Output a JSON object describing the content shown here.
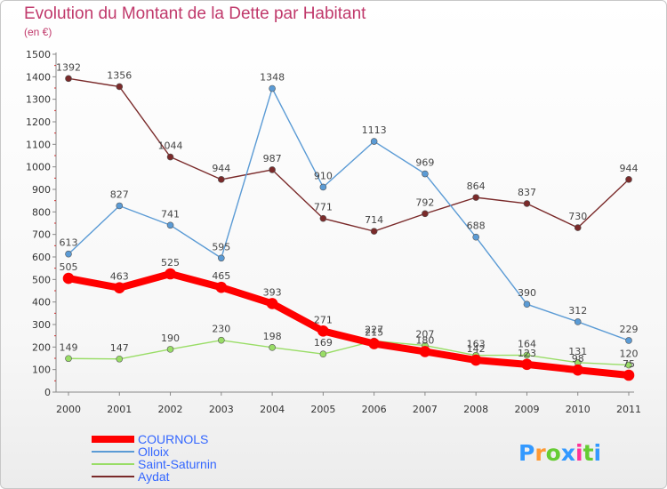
{
  "chart_data": {
    "type": "line",
    "title": "Evolution du Montant de la Dette par Habitant",
    "subtitle": "(en €)",
    "x": [
      "2000",
      "2001",
      "2002",
      "2003",
      "2004",
      "2005",
      "2006",
      "2007",
      "2008",
      "2009",
      "2010",
      "2011"
    ],
    "ylim": [
      0,
      1500
    ],
    "yticks": [
      0,
      100,
      200,
      300,
      400,
      500,
      600,
      700,
      800,
      900,
      1000,
      1100,
      1200,
      1300,
      1400,
      1500
    ],
    "grid": false,
    "legend_position": "bottom-left",
    "series": [
      {
        "name": "COURNOLS",
        "color": "#ff0000",
        "values": [
          505,
          463,
          525,
          465,
          393,
          271,
          215,
          180,
          142,
          123,
          98,
          75
        ],
        "labels": [
          "505",
          "463",
          "525",
          "465",
          "393",
          "271",
          "215",
          "180",
          "142",
          "123",
          "98",
          "75"
        ]
      },
      {
        "name": "Olloix",
        "color": "#5b9bd5",
        "values": [
          613,
          827,
          741,
          595,
          1348,
          910,
          1113,
          969,
          688,
          390,
          312,
          229
        ],
        "labels": [
          "613",
          "827",
          "741",
          "595",
          "1348",
          "910",
          "1113",
          "969",
          "688",
          "390",
          "312",
          "229"
        ]
      },
      {
        "name": "Saint-Saturnin",
        "color": "#99dd66",
        "values": [
          149,
          147,
          190,
          230,
          198,
          169,
          227,
          207,
          163,
          164,
          131,
          120
        ],
        "labels": [
          "149",
          "147",
          "190",
          "230",
          "198",
          "169",
          "227",
          "207",
          "163",
          "164",
          "131",
          "120"
        ]
      },
      {
        "name": "Aydat",
        "color": "#7a2a2a",
        "values": [
          1392,
          1356,
          1044,
          944,
          987,
          771,
          714,
          792,
          864,
          837,
          730,
          944
        ],
        "labels": [
          "1392",
          "1356",
          "1044",
          "944",
          "987",
          "771",
          "714",
          "792",
          "864",
          "837",
          "730",
          "944"
        ]
      }
    ]
  },
  "logo": {
    "text": "Proxiti"
  }
}
